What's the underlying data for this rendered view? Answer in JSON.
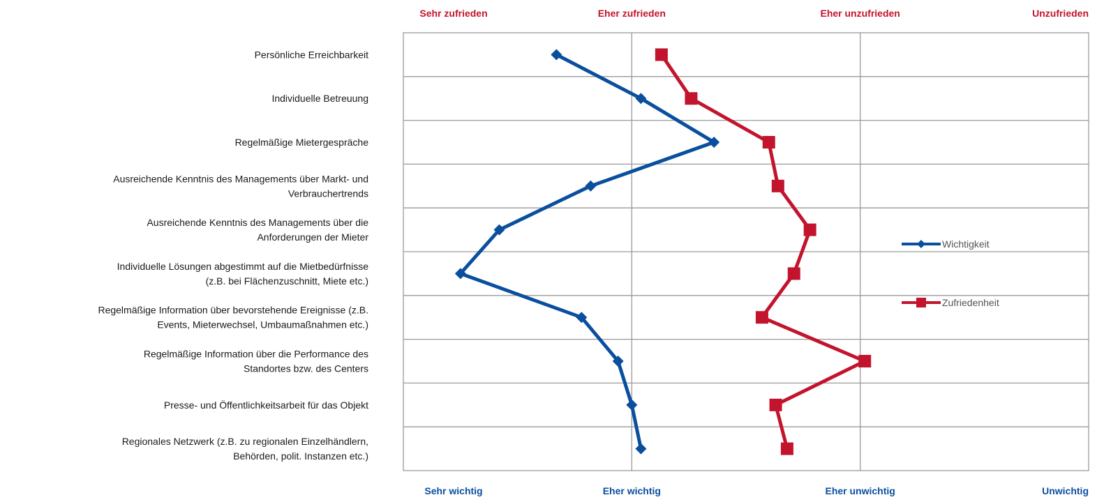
{
  "chart_data": {
    "type": "line",
    "orientation": "horizontal-values",
    "top_scale_labels": [
      "Sehr zufrieden",
      "Eher zufrieden",
      "Eher unzufrieden",
      "Unzufrieden"
    ],
    "bottom_scale_labels": [
      "Sehr wichtig",
      "Eher wichtig",
      "Eher unwichtig",
      "Unwichtig"
    ],
    "xlim": [
      1,
      4
    ],
    "categories": [
      [
        "Persönliche Erreichbarkeit"
      ],
      [
        "Individuelle Betreuung"
      ],
      [
        "Regelmäßige Mietergespräche"
      ],
      [
        "Ausreichende Kenntnis des Managements über Markt- und",
        "Verbrauchertrends"
      ],
      [
        "Ausreichende Kenntnis des Managements über die",
        "Anforderungen der Mieter"
      ],
      [
        "Individuelle Lösungen abgestimmt auf die Mietbedürfnisse",
        "(z.B. bei Flächenzuschnitt, Miete etc.)"
      ],
      [
        "Regelmäßige Information über bevorstehende Ereignisse (z.B.",
        "Events, Mieterwechsel, Umbaumaßnahmen etc.)"
      ],
      [
        "Regelmäßige Information über die Performance des",
        "Standortes bzw. des Centers"
      ],
      [
        "Presse- und Öffentlichkeitsarbeit für das Objekt"
      ],
      [
        "Regionales Netzwerk (z.B. zu regionalen Einzelhändlern,",
        "Behörden, polit. Instanzen etc.)"
      ]
    ],
    "series": [
      {
        "name": "Wichtigkeit",
        "color": "#0a4f9e",
        "marker": "diamond",
        "values": [
          1.67,
          2.04,
          2.36,
          1.82,
          1.42,
          1.25,
          1.78,
          1.94,
          2.0,
          2.04
        ]
      },
      {
        "name": "Zufriedenheit",
        "color": "#c3142d",
        "marker": "square",
        "values": [
          2.13,
          2.26,
          2.6,
          2.64,
          2.78,
          2.71,
          2.57,
          3.02,
          2.63,
          2.68
        ]
      }
    ],
    "grid": true,
    "legend_position": "right"
  }
}
